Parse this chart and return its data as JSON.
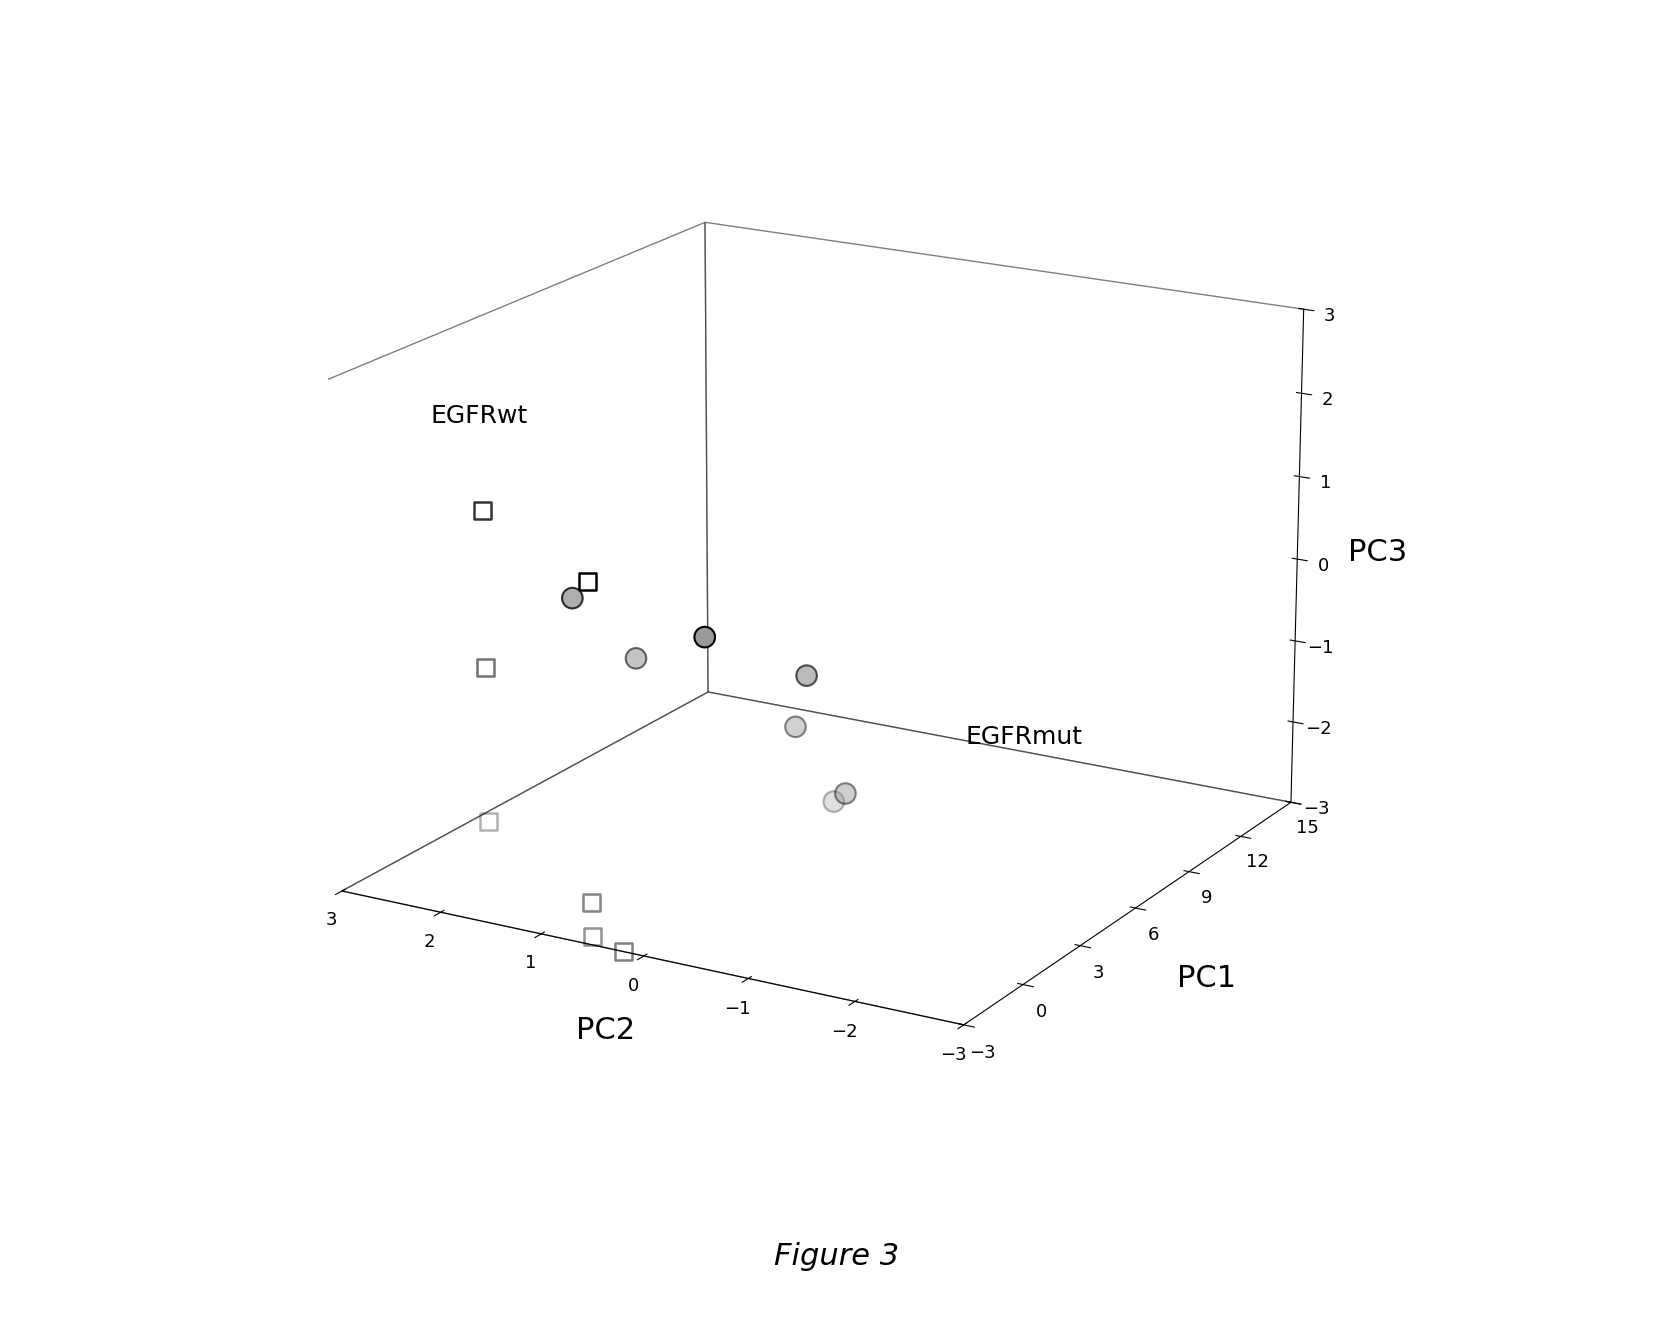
{
  "title": "Figure 3",
  "xlabel": "PC2",
  "ylabel": "PC1",
  "zlabel": "PC3",
  "pc2_lim": [
    3,
    -3
  ],
  "pc1_lim": [
    -3,
    15
  ],
  "pc3_lim": [
    -3,
    3
  ],
  "pc2_ticks": [
    3,
    2,
    1,
    0,
    -1,
    -2,
    -3
  ],
  "pc1_ticks": [
    -3,
    0,
    3,
    6,
    9,
    12,
    15
  ],
  "pc3_ticks": [
    -3,
    -2,
    -1,
    0,
    1,
    2,
    3
  ],
  "EGFRwt": {
    "label": "EGFRwt",
    "pc2": [
      1.5,
      0.5,
      1.5,
      1.5,
      0.5,
      0.5,
      0.2
    ],
    "pc1": [
      -3,
      -3,
      -3,
      -3,
      -3,
      -3,
      -3
    ],
    "pc3": [
      1.8,
      1.2,
      0.0,
      -1.8,
      -2.5,
      -2.9,
      -3.0
    ]
  },
  "EGFRmut": {
    "label": "EGFRmut",
    "pc2": [
      0.0,
      1.5,
      0.0,
      1.5,
      0.0,
      0.5,
      0.5
    ],
    "pc1": [
      0,
      1,
      5,
      4,
      7,
      7,
      9
    ],
    "pc3": [
      0.3,
      0.3,
      -0.8,
      -0.8,
      -2.5,
      -1.8,
      -3.0
    ]
  },
  "annotation_egfrwt": {
    "pc2": 2.0,
    "pc1": -3,
    "pc3": 2.7
  },
  "annotation_egfrmut": {
    "pc2": -1.0,
    "pc1": 8,
    "pc3": -1.8
  },
  "background_color": "#ffffff",
  "elev": 18,
  "azim": -60
}
